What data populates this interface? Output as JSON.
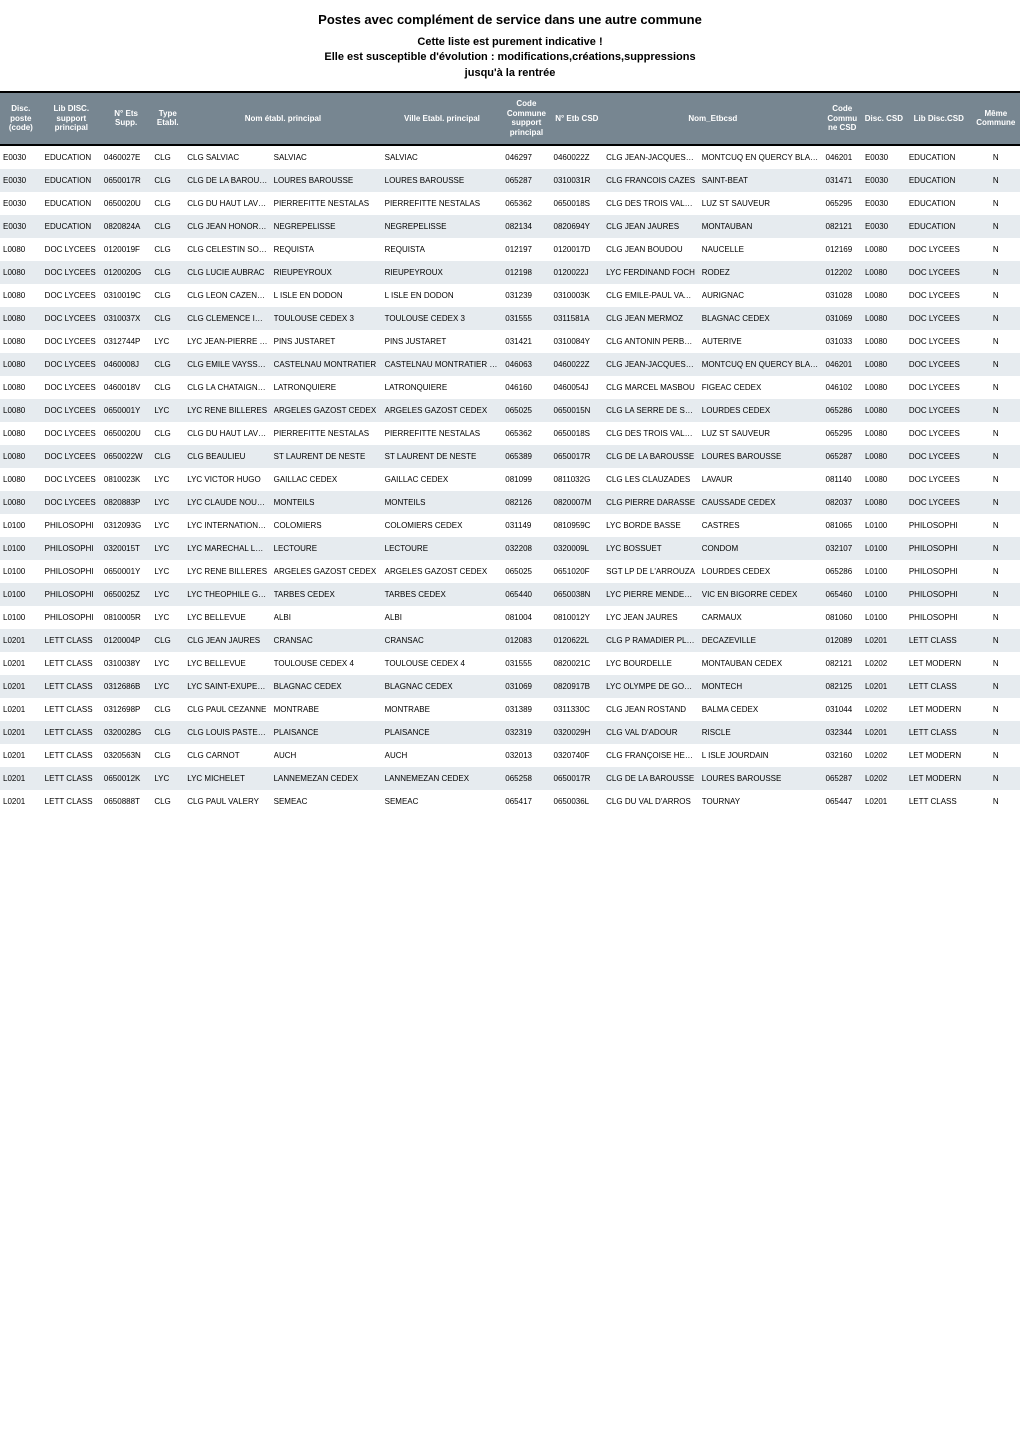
{
  "title": "Postes avec complément de service dans une autre commune",
  "subtitle_lines": [
    "Cette liste est purement indicative !",
    "Elle est susceptible d'évolution : modifications,créations,suppressions",
    "jusqu'à la rentrée"
  ],
  "columns": [
    "Disc. poste (code)",
    "Lib DISC. support principal",
    "N° Ets Supp.",
    "Type Etabl.",
    "Nom établ. principal",
    "Ville Etabl. principal",
    "Code Commune support principal",
    "N° Etb CSD",
    "Nom_Etbcsd",
    "Code Commu ne CSD",
    "Disc. CSD",
    "Lib Disc.CSD",
    "Même Commune"
  ],
  "rows": [
    {
      "c0": "E0030",
      "c1": "EDUCATION",
      "c2": "0460027E",
      "c3": "CLG",
      "c4a": "CLG SALVIAC",
      "c4b": "SALVIAC",
      "c5": "SALVIAC",
      "c6": "046297",
      "c7": "0460022Z",
      "c8a": "CLG JEAN-JACQUES FAURIE",
      "c8b": "MONTCUQ EN QUERCY BLANC",
      "c9": "046201",
      "c10": "E0030",
      "c11": "EDUCATION",
      "c12": "N"
    },
    {
      "c0": "E0030",
      "c1": "EDUCATION",
      "c2": "0650017R",
      "c3": "CLG",
      "c4a": "CLG DE LA BAROUSSE",
      "c4b": "LOURES BAROUSSE",
      "c5": "LOURES BAROUSSE",
      "c6": "065287",
      "c7": "0310031R",
      "c8a": "CLG FRANCOIS CAZES",
      "c8b": "SAINT-BEAT",
      "c9": "031471",
      "c10": "E0030",
      "c11": "EDUCATION",
      "c12": "N"
    },
    {
      "c0": "E0030",
      "c1": "EDUCATION",
      "c2": "0650020U",
      "c3": "CLG",
      "c4a": "CLG DU HAUT LAVEDAN",
      "c4b": "PIERREFITTE NESTALAS",
      "c5": "PIERREFITTE NESTALAS",
      "c6": "065362",
      "c7": "0650018S",
      "c8a": "CLG DES TROIS VALLEES",
      "c8b": "LUZ ST SAUVEUR",
      "c9": "065295",
      "c10": "E0030",
      "c11": "EDUCATION",
      "c12": "N"
    },
    {
      "c0": "E0030",
      "c1": "EDUCATION",
      "c2": "0820824A",
      "c3": "CLG",
      "c4a": "CLG JEAN HONORE FRAGONARD",
      "c4b": "NEGREPELISSE",
      "c5": "NEGREPELISSE",
      "c6": "082134",
      "c7": "0820694Y",
      "c8a": "CLG JEAN JAURES",
      "c8b": "MONTAUBAN",
      "c9": "082121",
      "c10": "E0030",
      "c11": "EDUCATION",
      "c12": "N"
    },
    {
      "c0": "L0080",
      "c1": "DOC LYCEES",
      "c2": "0120019F",
      "c3": "CLG",
      "c4a": "CLG CELESTIN SOUREZES",
      "c4b": "REQUISTA",
      "c5": "REQUISTA",
      "c6": "012197",
      "c7": "0120017D",
      "c8a": "CLG JEAN BOUDOU",
      "c8b": "NAUCELLE",
      "c9": "012169",
      "c10": "L0080",
      "c11": "DOC LYCEES",
      "c12": "N"
    },
    {
      "c0": "L0080",
      "c1": "DOC LYCEES",
      "c2": "0120020G",
      "c3": "CLG",
      "c4a": "CLG LUCIE AUBRAC",
      "c4b": "RIEUPEYROUX",
      "c5": "RIEUPEYROUX",
      "c6": "012198",
      "c7": "0120022J",
      "c8a": "LYC FERDINAND FOCH",
      "c8b": "RODEZ",
      "c9": "012202",
      "c10": "L0080",
      "c11": "DOC LYCEES",
      "c12": "N"
    },
    {
      "c0": "L0080",
      "c1": "DOC LYCEES",
      "c2": "0310019C",
      "c3": "CLG",
      "c4a": "CLG LEON CAZENEUVE",
      "c4b": "L ISLE EN DODON",
      "c5": "L ISLE EN DODON",
      "c6": "031239",
      "c7": "0310003K",
      "c8a": "CLG EMILE-PAUL VAYSSIE",
      "c8b": "AURIGNAC",
      "c9": "031028",
      "c10": "L0080",
      "c11": "DOC LYCEES",
      "c12": "N"
    },
    {
      "c0": "L0080",
      "c1": "DOC LYCEES",
      "c2": "0310037X",
      "c3": "CLG",
      "c4a": "CLG CLEMENCE ISAURE",
      "c4b": "TOULOUSE CEDEX 3",
      "c5": "TOULOUSE CEDEX 3",
      "c6": "031555",
      "c7": "0311581A",
      "c8a": "CLG JEAN MERMOZ",
      "c8b": "BLAGNAC CEDEX",
      "c9": "031069",
      "c10": "L0080",
      "c11": "DOC LYCEES",
      "c12": "N"
    },
    {
      "c0": "L0080",
      "c1": "DOC LYCEES",
      "c2": "0312744P",
      "c3": "LYC",
      "c4a": "LYC JEAN-PIERRE VERNANT",
      "c4b": "PINS JUSTARET",
      "c5": "PINS JUSTARET",
      "c6": "031421",
      "c7": "0310084Y",
      "c8a": "CLG ANTONIN PERBOSC",
      "c8b": "AUTERIVE",
      "c9": "031033",
      "c10": "L0080",
      "c11": "DOC LYCEES",
      "c12": "N"
    },
    {
      "c0": "L0080",
      "c1": "DOC LYCEES",
      "c2": "0460008J",
      "c3": "CLG",
      "c4a": "CLG EMILE VAYSSE STE A",
      "c4b": "CASTELNAU MONTRATIER",
      "c5": "CASTELNAU MONTRATIER STE A",
      "c6": "046063",
      "c7": "0460022Z",
      "c8a": "CLG JEAN-JACQUES FAURIE",
      "c8b": "MONTCUQ EN QUERCY BLANC",
      "c9": "046201",
      "c10": "L0080",
      "c11": "DOC LYCEES",
      "c12": "N"
    },
    {
      "c0": "L0080",
      "c1": "DOC LYCEES",
      "c2": "0460018V",
      "c3": "CLG",
      "c4a": "CLG LA CHATAIGNERAIE",
      "c4b": "LATRONQUIERE",
      "c5": "LATRONQUIERE",
      "c6": "046160",
      "c7": "0460054J",
      "c8a": "CLG MARCEL MASBOU",
      "c8b": "FIGEAC CEDEX",
      "c9": "046102",
      "c10": "L0080",
      "c11": "DOC LYCEES",
      "c12": "N"
    },
    {
      "c0": "L0080",
      "c1": "DOC LYCEES",
      "c2": "0650001Y",
      "c3": "LYC",
      "c4a": "LYC RENE BILLERES",
      "c4b": "ARGELES GAZOST CEDEX",
      "c5": "ARGELES GAZOST CEDEX",
      "c6": "065025",
      "c7": "0650015N",
      "c8a": "CLG LA SERRE DE SARSAN",
      "c8b": "LOURDES CEDEX",
      "c9": "065286",
      "c10": "L0080",
      "c11": "DOC LYCEES",
      "c12": "N"
    },
    {
      "c0": "L0080",
      "c1": "DOC LYCEES",
      "c2": "0650020U",
      "c3": "CLG",
      "c4a": "CLG DU HAUT LAVEDAN",
      "c4b": "PIERREFITTE NESTALAS",
      "c5": "PIERREFITTE NESTALAS",
      "c6": "065362",
      "c7": "0650018S",
      "c8a": "CLG DES TROIS VALLEES",
      "c8b": "LUZ ST SAUVEUR",
      "c9": "065295",
      "c10": "L0080",
      "c11": "DOC LYCEES",
      "c12": "N"
    },
    {
      "c0": "L0080",
      "c1": "DOC LYCEES",
      "c2": "0650022W",
      "c3": "CLG",
      "c4a": "CLG BEAULIEU",
      "c4b": "ST LAURENT DE NESTE",
      "c5": "ST LAURENT DE NESTE",
      "c6": "065389",
      "c7": "0650017R",
      "c8a": "CLG DE LA BAROUSSE",
      "c8b": "LOURES BAROUSSE",
      "c9": "065287",
      "c10": "L0080",
      "c11": "DOC LYCEES",
      "c12": "N"
    },
    {
      "c0": "L0080",
      "c1": "DOC LYCEES",
      "c2": "0810023K",
      "c3": "LYC",
      "c4a": "LYC VICTOR HUGO",
      "c4b": "GAILLAC CEDEX",
      "c5": "GAILLAC CEDEX",
      "c6": "081099",
      "c7": "0811032G",
      "c8a": "CLG LES CLAUZADES",
      "c8b": "LAVAUR",
      "c9": "081140",
      "c10": "L0080",
      "c11": "DOC LYCEES",
      "c12": "N"
    },
    {
      "c0": "L0080",
      "c1": "DOC LYCEES",
      "c2": "0820883P",
      "c3": "LYC",
      "c4a": "LYC CLAUDE NOUGARO",
      "c4b": "MONTEILS",
      "c5": "MONTEILS",
      "c6": "082126",
      "c7": "0820007M",
      "c8a": "CLG PIERRE DARASSE",
      "c8b": "CAUSSADE CEDEX",
      "c9": "082037",
      "c10": "L0080",
      "c11": "DOC LYCEES",
      "c12": "N"
    },
    {
      "c0": "L0100",
      "c1": "PHILOSOPHI",
      "c2": "0312093G",
      "c3": "LYC",
      "c4a": "LYC INTERNATIONAL VICTOR HUGO CEDEX",
      "c4b": "COLOMIERS",
      "c5": "COLOMIERS CEDEX",
      "c6": "031149",
      "c7": "0810959C",
      "c8a": "LYC BORDE BASSE",
      "c8b": "CASTRES",
      "c9": "081065",
      "c10": "L0100",
      "c11": "PHILOSOPHI",
      "c12": "N"
    },
    {
      "c0": "L0100",
      "c1": "PHILOSOPHI",
      "c2": "0320015T",
      "c3": "LYC",
      "c4a": "LYC MARECHAL LANNES",
      "c4b": "LECTOURE",
      "c5": "LECTOURE",
      "c6": "032208",
      "c7": "0320009L",
      "c8a": "LYC BOSSUET",
      "c8b": "CONDOM",
      "c9": "032107",
      "c10": "L0100",
      "c11": "PHILOSOPHI",
      "c12": "N"
    },
    {
      "c0": "L0100",
      "c1": "PHILOSOPHI",
      "c2": "0650001Y",
      "c3": "LYC",
      "c4a": "LYC RENE BILLERES",
      "c4b": "ARGELES GAZOST CEDEX",
      "c5": "ARGELES GAZOST CEDEX",
      "c6": "065025",
      "c7": "0651020F",
      "c8a": "SGT LP DE L'ARROUZA",
      "c8b": "LOURDES CEDEX",
      "c9": "065286",
      "c10": "L0100",
      "c11": "PHILOSOPHI",
      "c12": "N"
    },
    {
      "c0": "L0100",
      "c1": "PHILOSOPHI",
      "c2": "0650025Z",
      "c3": "LYC",
      "c4a": "LYC THEOPHILE GAUTIER",
      "c4b": "TARBES CEDEX",
      "c5": "TARBES CEDEX",
      "c6": "065440",
      "c7": "0650038N",
      "c8a": "LYC PIERRE MENDES FRANCE",
      "c8b": "VIC EN BIGORRE CEDEX",
      "c9": "065460",
      "c10": "L0100",
      "c11": "PHILOSOPHI",
      "c12": "N"
    },
    {
      "c0": "L0100",
      "c1": "PHILOSOPHI",
      "c2": "0810005R",
      "c3": "LYC",
      "c4a": "LYC BELLEVUE",
      "c4b": "ALBI",
      "c5": "ALBI",
      "c6": "081004",
      "c7": "0810012Y",
      "c8a": "LYC JEAN JAURES",
      "c8b": "CARMAUX",
      "c9": "081060",
      "c10": "L0100",
      "c11": "PHILOSOPHI",
      "c12": "N"
    },
    {
      "c0": "L0201",
      "c1": "LETT CLASS",
      "c2": "0120004P",
      "c3": "CLG",
      "c4a": "CLG JEAN JAURES",
      "c4b": "CRANSAC",
      "c5": "CRANSAC",
      "c6": "012083",
      "c7": "0120622L",
      "c8a": "CLG P RAMADIER PLUS ANNEXE FIRMI",
      "c8b": "DECAZEVILLE",
      "c9": "012089",
      "c10": "L0201",
      "c11": "LETT CLASS",
      "c12": "N"
    },
    {
      "c0": "L0201",
      "c1": "LETT CLASS",
      "c2": "0310038Y",
      "c3": "LYC",
      "c4a": "LYC BELLEVUE",
      "c4b": "TOULOUSE CEDEX 4",
      "c5": "TOULOUSE CEDEX 4",
      "c6": "031555",
      "c7": "0820021C",
      "c8a": "LYC BOURDELLE",
      "c8b": "MONTAUBAN CEDEX",
      "c9": "082121",
      "c10": "L0202",
      "c11": "LET MODERN",
      "c12": "N"
    },
    {
      "c0": "L0201",
      "c1": "LETT CLASS",
      "c2": "0312686B",
      "c3": "LYC",
      "c4a": "LYC SAINT-EXUPERY",
      "c4b": "BLAGNAC CEDEX",
      "c5": "BLAGNAC CEDEX",
      "c6": "031069",
      "c7": "0820917B",
      "c8a": "LYC OLYMPE DE GOUGES",
      "c8b": "MONTECH",
      "c9": "082125",
      "c10": "L0201",
      "c11": "LETT CLASS",
      "c12": "N"
    },
    {
      "c0": "L0201",
      "c1": "LETT CLASS",
      "c2": "0312698P",
      "c3": "CLG",
      "c4a": "CLG PAUL CEZANNE",
      "c4b": "MONTRABE",
      "c5": "MONTRABE",
      "c6": "031389",
      "c7": "0311330C",
      "c8a": "CLG JEAN ROSTAND",
      "c8b": "BALMA CEDEX",
      "c9": "031044",
      "c10": "L0202",
      "c11": "LET MODERN",
      "c12": "N"
    },
    {
      "c0": "L0201",
      "c1": "LETT CLASS",
      "c2": "0320028G",
      "c3": "CLG",
      "c4a": "CLG LOUIS PASTEUR",
      "c4b": "PLAISANCE",
      "c5": "PLAISANCE",
      "c6": "032319",
      "c7": "0320029H",
      "c8a": "CLG VAL D'ADOUR",
      "c8b": "RISCLE",
      "c9": "032344",
      "c10": "L0201",
      "c11": "LETT CLASS",
      "c12": "N"
    },
    {
      "c0": "L0201",
      "c1": "LETT CLASS",
      "c2": "0320563N",
      "c3": "CLG",
      "c4a": "CLG CARNOT",
      "c4b": "AUCH",
      "c5": "AUCH",
      "c6": "032013",
      "c7": "0320740F",
      "c8a": "CLG FRANÇOISE HERITIER",
      "c8b": "L ISLE JOURDAIN",
      "c9": "032160",
      "c10": "L0202",
      "c11": "LET MODERN",
      "c12": "N"
    },
    {
      "c0": "L0201",
      "c1": "LETT CLASS",
      "c2": "0650012K",
      "c3": "LYC",
      "c4a": "LYC MICHELET",
      "c4b": "LANNEMEZAN CEDEX",
      "c5": "LANNEMEZAN CEDEX",
      "c6": "065258",
      "c7": "0650017R",
      "c8a": "CLG DE LA BAROUSSE",
      "c8b": "LOURES BAROUSSE",
      "c9": "065287",
      "c10": "L0202",
      "c11": "LET MODERN",
      "c12": "N"
    },
    {
      "c0": "L0201",
      "c1": "LETT CLASS",
      "c2": "0650888T",
      "c3": "CLG",
      "c4a": "CLG PAUL VALERY",
      "c4b": "SEMEAC",
      "c5": "SEMEAC",
      "c6": "065417",
      "c7": "0650036L",
      "c8a": "CLG DU VAL D'ARROS",
      "c8b": "TOURNAY",
      "c9": "065447",
      "c10": "L0201",
      "c11": "LETT CLASS",
      "c12": "N"
    }
  ],
  "style": {
    "header_bg": "#778691",
    "header_fg": "#ffffff",
    "row_odd_bg": "#ffffff",
    "row_even_bg": "#e6ebef",
    "border_color": "#000000",
    "font_size_body": 8,
    "font_size_title": 13,
    "font_size_subtitle": 11
  }
}
